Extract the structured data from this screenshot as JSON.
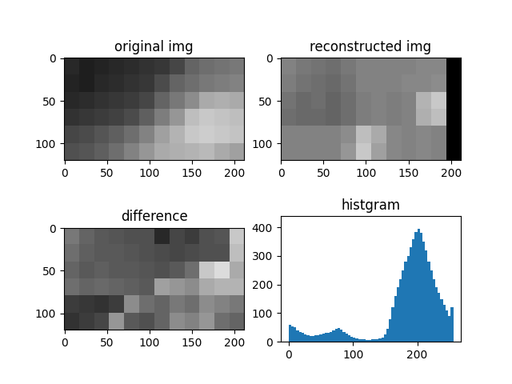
{
  "chart_data": [
    {
      "type": "image",
      "title": "original img",
      "xlim": [
        -0.5,
        211.5
      ],
      "ylim": [
        119.5,
        -0.5
      ],
      "xticks": [
        0,
        50,
        100,
        150,
        200
      ],
      "yticks": [
        0,
        50,
        100
      ],
      "cell_range": [
        0,
        255
      ],
      "cells": [
        [
          40,
          30,
          35,
          40,
          45,
          50,
          55,
          70,
          100,
          110,
          115,
          120
        ],
        [
          35,
          30,
          40,
          45,
          50,
          55,
          75,
          100,
          110,
          120,
          125,
          130
        ],
        [
          40,
          45,
          50,
          55,
          60,
          70,
          100,
          120,
          140,
          170,
          175,
          170
        ],
        [
          50,
          55,
          60,
          65,
          75,
          95,
          125,
          150,
          190,
          200,
          195,
          190
        ],
        [
          70,
          75,
          85,
          95,
          110,
          130,
          160,
          180,
          200,
          205,
          200,
          195
        ],
        [
          80,
          85,
          95,
          110,
          130,
          150,
          170,
          175,
          180,
          185,
          170,
          160
        ]
      ]
    },
    {
      "type": "image",
      "title": "reconstructed img",
      "xlim": [
        -0.5,
        211.5
      ],
      "ylim": [
        119.5,
        -0.5
      ],
      "xticks": [
        0,
        50,
        100,
        150,
        200
      ],
      "yticks": [
        0,
        50,
        100
      ],
      "cell_range": [
        0,
        255
      ],
      "cells": [
        [
          130,
          120,
          115,
          110,
          120,
          130,
          130,
          130,
          130,
          135,
          135,
          0
        ],
        [
          125,
          115,
          110,
          105,
          115,
          130,
          130,
          130,
          135,
          135,
          140,
          0
        ],
        [
          115,
          105,
          110,
          100,
          110,
          125,
          130,
          125,
          130,
          180,
          200,
          0
        ],
        [
          110,
          105,
          105,
          100,
          110,
          125,
          130,
          125,
          130,
          175,
          190,
          0
        ],
        [
          130,
          130,
          130,
          130,
          140,
          190,
          170,
          135,
          130,
          135,
          130,
          0
        ],
        [
          130,
          130,
          130,
          130,
          150,
          200,
          160,
          135,
          130,
          135,
          130,
          0
        ]
      ]
    },
    {
      "type": "image",
      "title": "difference",
      "xlim": [
        -0.5,
        211.5
      ],
      "ylim": [
        119.5,
        -0.5
      ],
      "xticks": [
        0,
        50,
        100,
        150,
        200
      ],
      "yticks": [
        0,
        50,
        100
      ],
      "cell_range": [
        0,
        255
      ],
      "cells": [
        [
          120,
          100,
          90,
          85,
          80,
          80,
          40,
          70,
          60,
          80,
          85,
          200
        ],
        [
          110,
          95,
          90,
          90,
          85,
          80,
          75,
          70,
          75,
          80,
          80,
          190
        ],
        [
          100,
          90,
          95,
          90,
          90,
          85,
          80,
          90,
          110,
          200,
          220,
          170
        ],
        [
          110,
          100,
          105,
          100,
          95,
          90,
          160,
          150,
          140,
          170,
          180,
          180
        ],
        [
          60,
          55,
          50,
          60,
          140,
          110,
          100,
          120,
          110,
          140,
          130,
          120
        ],
        [
          50,
          60,
          70,
          150,
          90,
          80,
          100,
          140,
          130,
          150,
          110,
          100
        ]
      ]
    },
    {
      "type": "histogram",
      "title": "histgram",
      "color": "#1f77b4",
      "xlim": [
        -12.75,
        267.75
      ],
      "ylim": [
        0,
        440
      ],
      "xticks": [
        0,
        100,
        200
      ],
      "yticks": [
        0,
        100,
        200,
        300,
        400
      ],
      "bins": [
        0,
        4,
        8,
        12,
        16,
        20,
        24,
        28,
        32,
        36,
        40,
        44,
        48,
        52,
        56,
        60,
        64,
        68,
        72,
        76,
        80,
        84,
        88,
        92,
        96,
        100,
        104,
        108,
        112,
        116,
        120,
        124,
        128,
        132,
        136,
        140,
        144,
        148,
        152,
        156,
        160,
        164,
        168,
        172,
        176,
        180,
        184,
        188,
        192,
        196,
        200,
        204,
        208,
        212,
        216,
        220,
        224,
        228,
        232,
        236,
        240,
        244,
        248,
        252,
        256
      ],
      "values": [
        60,
        55,
        50,
        40,
        35,
        30,
        25,
        22,
        20,
        20,
        22,
        24,
        26,
        28,
        30,
        32,
        35,
        40,
        45,
        48,
        42,
        35,
        28,
        22,
        18,
        14,
        12,
        10,
        8,
        8,
        7,
        7,
        8,
        8,
        10,
        12,
        15,
        25,
        45,
        80,
        120,
        160,
        190,
        220,
        250,
        280,
        300,
        330,
        360,
        385,
        395,
        380,
        350,
        320,
        280,
        250,
        220,
        190,
        170,
        150,
        130,
        110,
        90,
        120
      ]
    }
  ]
}
